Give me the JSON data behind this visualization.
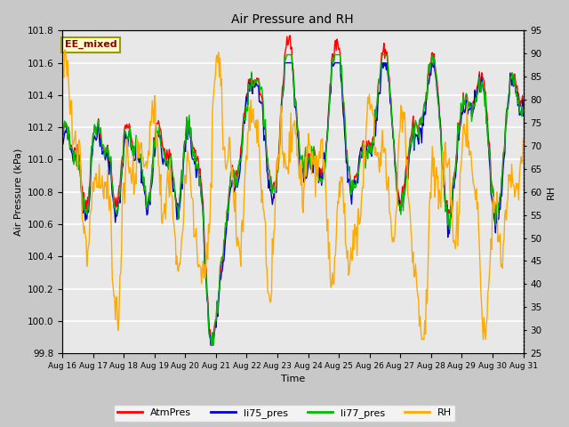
{
  "title": "Air Pressure and RH",
  "xlabel": "Time",
  "ylabel_left": "Air Pressure (kPa)",
  "ylabel_right": "RH",
  "annotation": "EE_mixed",
  "ylim_left": [
    99.8,
    101.8
  ],
  "ylim_right": [
    25,
    95
  ],
  "yticks_left": [
    99.8,
    100.0,
    100.2,
    100.4,
    100.6,
    100.8,
    101.0,
    101.2,
    101.4,
    101.6,
    101.8
  ],
  "yticks_right": [
    25,
    30,
    35,
    40,
    45,
    50,
    55,
    60,
    65,
    70,
    75,
    80,
    85,
    90,
    95
  ],
  "xtick_labels": [
    "Aug 16",
    "Aug 17",
    "Aug 18",
    "Aug 19",
    "Aug 20",
    "Aug 21",
    "Aug 22",
    "Aug 23",
    "Aug 24",
    "Aug 25",
    "Aug 26",
    "Aug 27",
    "Aug 28",
    "Aug 29",
    "Aug 30",
    "Aug 31"
  ],
  "fig_bg_color": "#c8c8c8",
  "plot_bg_color": "#e8e8e8",
  "grid_color": "#ffffff",
  "colors": {
    "AtmPres": "#ff0000",
    "li75_pres": "#0000cc",
    "li77_pres": "#00bb00",
    "RH": "#ffaa00"
  },
  "legend_labels": [
    "AtmPres",
    "li75_pres",
    "li77_pres",
    "RH"
  ]
}
